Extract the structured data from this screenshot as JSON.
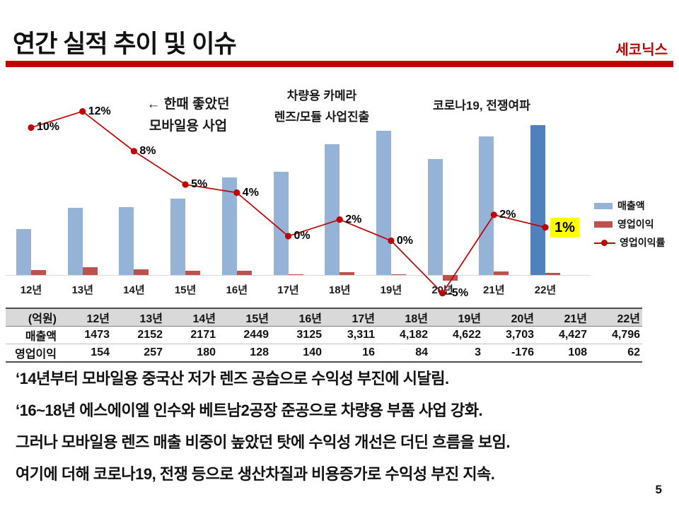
{
  "slide": {
    "title": "연간 실적 추이 및 이슈",
    "brand": "세코닉스",
    "page_number": "5",
    "accent_color": "#c00000"
  },
  "chart": {
    "annotations": {
      "mobile": {
        "line1": "← 한때 좋았던",
        "line2": "모바일용 사업"
      },
      "vehicle": {
        "line1": "차량용 카메라",
        "line2": "렌즈/모듈 사업진출"
      },
      "covid": {
        "line1": "코로나19, 전쟁여파"
      }
    },
    "legend": [
      {
        "label": "매출액",
        "marker": "bar",
        "color": "#95b3d7"
      },
      {
        "label": "영업이익",
        "marker": "bar",
        "color": "#c0504d"
      },
      {
        "label": "영업이익률",
        "marker": "line-dot",
        "color": "#c00000"
      }
    ]
  },
  "chart_data": {
    "type": "bar",
    "subtype": "bar+line combo, line on secondary % axis",
    "categories": [
      "12년",
      "13년",
      "14년",
      "15년",
      "16년",
      "17년",
      "18년",
      "19년",
      "20년",
      "21년",
      "22년"
    ],
    "series": [
      {
        "name": "매출액",
        "type": "bar",
        "unit": "억원",
        "color": "#95b3d7",
        "highlight": {
          "index": 10,
          "color": "#4f81bd"
        },
        "values": [
          1473,
          2152,
          2171,
          2449,
          3125,
          3311,
          4182,
          4622,
          3703,
          4427,
          4796
        ]
      },
      {
        "name": "영업이익",
        "type": "bar",
        "unit": "억원",
        "color": "#c0504d",
        "values": [
          154,
          257,
          180,
          128,
          140,
          16,
          84,
          3,
          -176,
          108,
          62
        ]
      },
      {
        "name": "영업이익률",
        "type": "line",
        "unit": "%",
        "color": "#c00000",
        "values": [
          10,
          12,
          8,
          5,
          4,
          0,
          2,
          0,
          -5,
          2,
          1
        ],
        "point_labels": [
          "10%",
          "12%",
          "8%",
          "5%",
          "4%",
          "0%",
          "2%",
          "0%",
          "-5%",
          "2%",
          "1%"
        ],
        "highlight_label": {
          "index": 10,
          "bg": "#ffff00"
        }
      }
    ],
    "title": "",
    "xlabel": "",
    "ylabel": "",
    "grid": false,
    "legend_position": "right"
  },
  "table": {
    "unit_header": "(억원)",
    "col_headers": [
      "12년",
      "13년",
      "14년",
      "15년",
      "16년",
      "17년",
      "18년",
      "19년",
      "20년",
      "21년",
      "22년"
    ],
    "rows": [
      {
        "label": "매출액",
        "values": [
          "1473",
          "2152",
          "2171",
          "2449",
          "3125",
          "3,311",
          "4,182",
          "4,622",
          "3,703",
          "4,427",
          "4,796"
        ]
      },
      {
        "label": "영업이익",
        "values": [
          "154",
          "257",
          "180",
          "128",
          "140",
          "16",
          "84",
          "3",
          "-176",
          "108",
          "62"
        ]
      }
    ]
  },
  "bullets": [
    "‘14년부터 모바일용 중국산 저가 렌즈 공습으로 수익성 부진에 시달림.",
    "‘16~18년 에스에이엘 인수와 베트남2공장 준공으로 차량용 부품 사업 강화.",
    "그러나 모바일용 렌즈 매출 비중이 높았던 탓에 수익성 개선은 더딘 흐름을 보임.",
    "여기에 더해 코로나19, 전쟁 등으로 생산차질과 비용증가로 수익성 부진 지속."
  ]
}
